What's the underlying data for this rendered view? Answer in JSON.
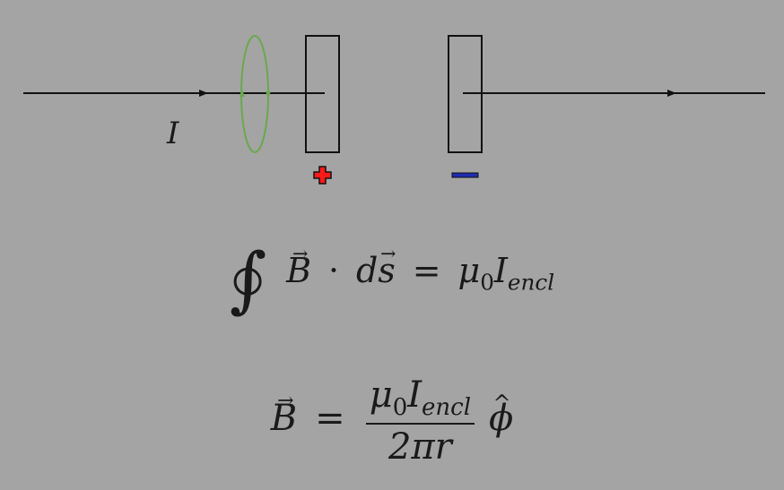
{
  "diagram": {
    "current_label": "I",
    "plus_sign": "+",
    "minus_sign": "−",
    "loop_color": "#6aa84f",
    "plus_color": "#ff1a1a",
    "minus_color": "#1f2bb0",
    "wire_color": "#111111"
  },
  "equations": {
    "ampere": {
      "integral": "∫",
      "field": "B",
      "dot": "·",
      "ds_d": "d",
      "ds_s": "s",
      "equals": "=",
      "mu": "μ",
      "mu_sub": "0",
      "current": "I",
      "current_sub": "encl"
    },
    "field": {
      "field": "B",
      "equals": "=",
      "num_mu": "μ",
      "num_mu_sub": "0",
      "num_current": "I",
      "num_current_sub": "encl",
      "den": "2πr",
      "unit_vector": "ϕ"
    }
  }
}
